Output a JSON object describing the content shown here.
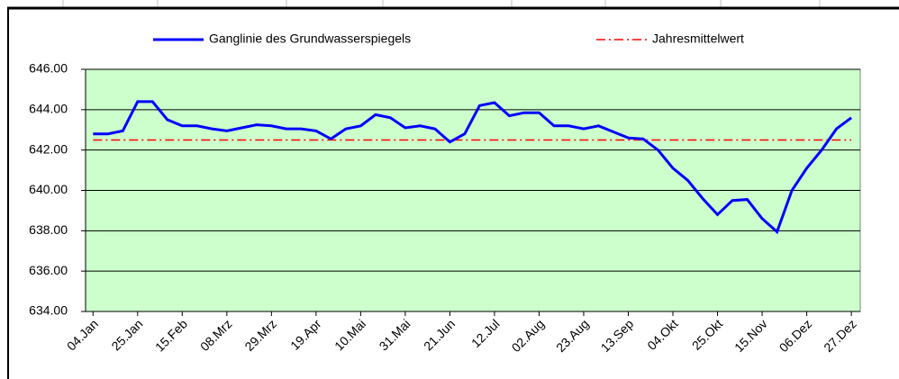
{
  "chart_data": {
    "type": "line",
    "categories": [
      "04.Jan",
      null,
      null,
      "25.Jan",
      null,
      null,
      "15.Feb",
      null,
      null,
      "08.Mrz",
      null,
      null,
      "29.Mrz",
      null,
      null,
      "19.Apr",
      null,
      null,
      "10.Mai",
      null,
      null,
      "31.Mai",
      null,
      null,
      "21.Jun",
      null,
      null,
      "12.Jul",
      null,
      null,
      "02.Aug",
      null,
      null,
      "23.Aug",
      null,
      null,
      "13.Sep",
      null,
      null,
      "04.Okt",
      null,
      null,
      "25.Okt",
      null,
      null,
      "15.Nov",
      null,
      null,
      "06.Dez",
      null,
      null,
      "27.Dez"
    ],
    "series": [
      {
        "name": "Ganglinie des Grundwasserspiegels",
        "color": "#0000ff",
        "dash": "solid",
        "values": [
          642.8,
          642.8,
          642.95,
          644.4,
          644.4,
          643.5,
          643.2,
          643.2,
          643.05,
          642.95,
          643.1,
          643.25,
          643.2,
          643.05,
          643.05,
          642.95,
          642.55,
          643.05,
          643.2,
          643.75,
          643.6,
          643.1,
          643.2,
          643.05,
          642.4,
          642.8,
          644.2,
          644.35,
          643.7,
          643.85,
          643.85,
          643.2,
          643.2,
          643.05,
          643.2,
          642.9,
          642.6,
          642.55,
          642.0,
          641.1,
          640.5,
          639.6,
          638.8,
          639.5,
          639.55,
          638.6,
          637.95,
          640.0,
          641.1,
          642.0,
          643.05,
          643.6
        ]
      },
      {
        "name": "Jahresmittelwert",
        "color": "#ff0000",
        "dash": "dashdot",
        "values": [
          642.5,
          642.5,
          642.5,
          642.5,
          642.5,
          642.5,
          642.5,
          642.5,
          642.5,
          642.5,
          642.5,
          642.5,
          642.5,
          642.5,
          642.5,
          642.5,
          642.5,
          642.5,
          642.5,
          642.5,
          642.5,
          642.5,
          642.5,
          642.5,
          642.5,
          642.5,
          642.5,
          642.5,
          642.5,
          642.5,
          642.5,
          642.5,
          642.5,
          642.5,
          642.5,
          642.5,
          642.5,
          642.5,
          642.5,
          642.5,
          642.5,
          642.5,
          642.5,
          642.5,
          642.5,
          642.5,
          642.5,
          642.5,
          642.5,
          642.5,
          642.5,
          642.5
        ]
      }
    ],
    "ylim": [
      634,
      646
    ],
    "yticks": [
      {
        "value": 634,
        "label": "634.00"
      },
      {
        "value": 636,
        "label": "636.00"
      },
      {
        "value": 638,
        "label": "638.00"
      },
      {
        "value": 640,
        "label": "640.00"
      },
      {
        "value": 642,
        "label": "642.00"
      },
      {
        "value": 644,
        "label": "644.00"
      },
      {
        "value": 646,
        "label": "646.00"
      }
    ],
    "grid": true,
    "legend": "top",
    "plot_background": "#ccffcc"
  }
}
